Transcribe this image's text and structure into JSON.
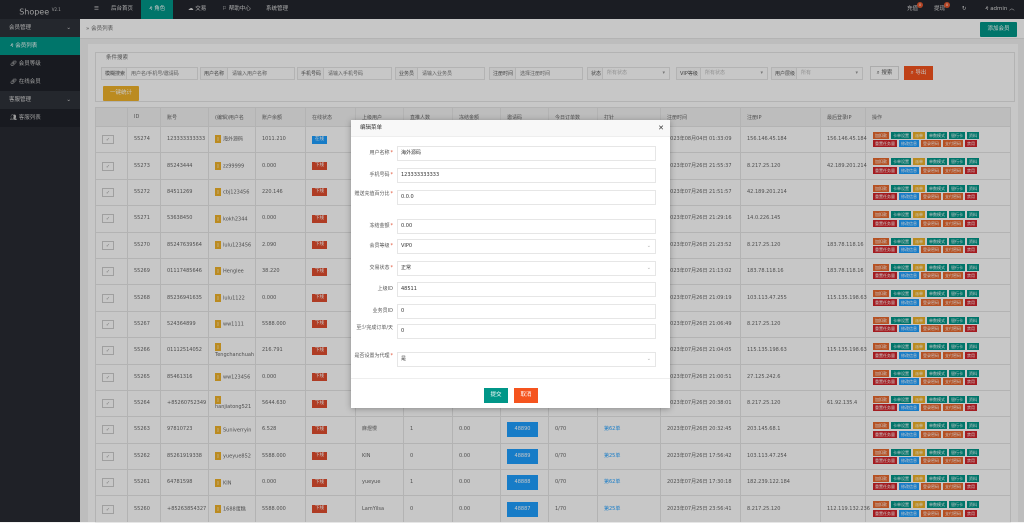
{
  "app": {
    "title": "Shopee",
    "version": "V2.1"
  },
  "topnav": {
    "items": [
      {
        "label": "后台首页"
      },
      {
        "label": "角色"
      },
      {
        "label": "交易"
      },
      {
        "label": "帮助中心"
      },
      {
        "label": "系统管理"
      }
    ],
    "recharge": "充值",
    "recharge_count": "0",
    "withdraw": "提现",
    "withdraw_count": "0",
    "user": "admin"
  },
  "sidebar": {
    "groups": [
      {
        "label": "会员管理",
        "items": [
          {
            "label": "会员列表"
          },
          {
            "label": "会员等级"
          },
          {
            "label": "在线会员"
          }
        ]
      },
      {
        "label": "客服管理",
        "items": [
          {
            "label": "客服列表"
          }
        ]
      }
    ]
  },
  "breadcrumb": "会员列表",
  "add_member": "添加会员",
  "filters": {
    "title": "条件搜索",
    "fuzzy_label": "模糊搜索",
    "fuzzy_placeholder": "用户名/手机号/邀请码",
    "name_label": "用户名称",
    "name_placeholder": "请输入用户名称",
    "phone_label": "手机号码",
    "phone_placeholder": "请输入手机号码",
    "agent_label": "业务员",
    "agent_placeholder": "请输入业务员",
    "regtime_label": "注册时间",
    "regtime_placeholder": "选择注册时间",
    "status_label": "状态",
    "status_value": "所有状态",
    "vip_label": "VIP等级",
    "vip_value": "所有状态",
    "level_label": "用户层级",
    "level_value": "所有",
    "search": "搜索",
    "export": "导出",
    "stats": "一键统计"
  },
  "table": {
    "headers": [
      "",
      "ID",
      "账号",
      "(编辑)用户名",
      "账户余额",
      "在线状态",
      "上级用户",
      "直推人数",
      "冻结金额",
      "邀请码",
      "今日订单数",
      "打针",
      "注册时间",
      "注册IP",
      "最后登录IP",
      "操作"
    ],
    "actions_row1": [
      {
        "label": "加扣款",
        "color": "#e8682e"
      },
      {
        "label": "卡单设置",
        "color": "#009688"
      },
      {
        "label": "派单",
        "color": "#f0b22a"
      },
      {
        "label": "单数模式",
        "color": "#009688"
      },
      {
        "label": "银行卡",
        "color": "#009688"
      },
      {
        "label": "资料",
        "color": "#009688"
      }
    ],
    "actions_row2": [
      {
        "label": "重置任务量",
        "color": "#d2232a"
      },
      {
        "label": "修改信息",
        "color": "#1e9fff"
      },
      {
        "label": "登录密码",
        "color": "#e8682e"
      },
      {
        "label": "支付密码",
        "color": "#e8682e"
      },
      {
        "label": "禁用",
        "color": "#d2232a"
      }
    ],
    "rows": [
      {
        "id": "55274",
        "account": "123333333333",
        "username": "海外源码",
        "balance": "1011.210",
        "online": "在线",
        "is_online": true,
        "parent": "",
        "direct": "",
        "frozen": "",
        "code": "",
        "today": "",
        "needle": "",
        "regtime": "2023年08月04日 01:33:09",
        "regip": "156.146.45.184",
        "lastip": "156.146.45.184"
      },
      {
        "id": "55273",
        "account": "85243444",
        "username": "zz99999",
        "balance": "0.000",
        "online": "下线",
        "is_online": false,
        "parent": "",
        "direct": "",
        "frozen": "",
        "code": "",
        "today": "",
        "needle": "",
        "regtime": "2023年07月26日 21:55:37",
        "regip": "8.217.25.120",
        "lastip": "42.189.201.214"
      },
      {
        "id": "55272",
        "account": "84511269",
        "username": "cbj123456",
        "balance": "220.146",
        "online": "下线",
        "is_online": false,
        "parent": "",
        "direct": "",
        "frozen": "",
        "code": "",
        "today": "",
        "needle": "",
        "regtime": "2023年07月26日 21:51:57",
        "regip": "42.189.201.214",
        "lastip": ""
      },
      {
        "id": "55271",
        "account": "53638450",
        "username": "kokh2344",
        "balance": "0.000",
        "online": "下线",
        "is_online": false,
        "parent": "",
        "direct": "",
        "frozen": "",
        "code": "",
        "today": "",
        "needle": "",
        "regtime": "2023年07月26日 21:29:16",
        "regip": "14.0.226.145",
        "lastip": ""
      },
      {
        "id": "55270",
        "account": "85247639564",
        "username": "lulu123456",
        "balance": "2.090",
        "online": "下线",
        "is_online": false,
        "parent": "",
        "direct": "",
        "frozen": "",
        "code": "",
        "today": "",
        "needle": "",
        "regtime": "2023年07月26日 21:23:52",
        "regip": "8.217.25.120",
        "lastip": "183.78.118.16"
      },
      {
        "id": "55269",
        "account": "01117485646",
        "username": "Henglee",
        "balance": "38.220",
        "online": "下线",
        "is_online": false,
        "parent": "",
        "direct": "",
        "frozen": "",
        "code": "",
        "today": "",
        "needle": "",
        "regtime": "2023年07月26日 21:13:02",
        "regip": "183.78.118.16",
        "lastip": "183.78.118.16"
      },
      {
        "id": "55268",
        "account": "85236941635",
        "username": "lulu1122",
        "balance": "0.000",
        "online": "下线",
        "is_online": false,
        "parent": "",
        "direct": "",
        "frozen": "",
        "code": "",
        "today": "",
        "needle": "",
        "regtime": "2023年07月26日 21:09:19",
        "regip": "103.113.47.255",
        "lastip": "115.135.198.63"
      },
      {
        "id": "55267",
        "account": "524364899",
        "username": "ww1111",
        "balance": "5588.000",
        "online": "下线",
        "is_online": false,
        "parent": "",
        "direct": "",
        "frozen": "",
        "code": "",
        "today": "",
        "needle": "",
        "regtime": "2023年07月26日 21:06:49",
        "regip": "8.217.25.120",
        "lastip": ""
      },
      {
        "id": "55266",
        "account": "01112514052",
        "username": "Tengchanchuah",
        "balance": "216.791",
        "online": "下线",
        "is_online": false,
        "parent": "",
        "direct": "",
        "frozen": "",
        "code": "",
        "today": "",
        "needle": "",
        "regtime": "2023年07月26日 21:04:05",
        "regip": "115.135.198.63",
        "lastip": "115.135.198.63"
      },
      {
        "id": "55265",
        "account": "85461316",
        "username": "ww123456",
        "balance": "0.000",
        "online": "下线",
        "is_online": false,
        "parent": "",
        "direct": "",
        "frozen": "",
        "code": "",
        "today": "",
        "needle": "",
        "regtime": "2023年07月26日 21:00:51",
        "regip": "27.125.242.6",
        "lastip": ""
      },
      {
        "id": "55264",
        "account": "+85260752349",
        "username": "hanjiatong521",
        "balance": "5644.630",
        "online": "下线",
        "is_online": false,
        "parent": "",
        "direct": "",
        "frozen": "",
        "code": "",
        "today": "",
        "needle": "",
        "regtime": "2023年07月26日 20:38:01",
        "regip": "8.217.25.120",
        "lastip": "61.92.135.4"
      },
      {
        "id": "55263",
        "account": "97810723",
        "username": "Suniverryin",
        "balance": "6.528",
        "online": "下线",
        "is_online": false,
        "parent": "麻煜慢",
        "direct": "1",
        "frozen": "0.00",
        "code": "48890",
        "today": "0/70",
        "needle": "第62单",
        "regtime": "2023年07月26日 20:32:45",
        "regip": "203.145.68.1",
        "lastip": ""
      },
      {
        "id": "55262",
        "account": "85261919338",
        "username": "yueyue852",
        "balance": "5588.000",
        "online": "下线",
        "is_online": false,
        "parent": "KIN",
        "direct": "0",
        "frozen": "0.00",
        "code": "48889",
        "today": "0/70",
        "needle": "第25单",
        "regtime": "2023年07月26日 17:56:42",
        "regip": "103.113.47.254",
        "lastip": ""
      },
      {
        "id": "55261",
        "account": "64781598",
        "username": "KIN",
        "balance": "0.000",
        "online": "下线",
        "is_online": false,
        "parent": "yueyue",
        "direct": "1",
        "frozen": "0.00",
        "code": "48888",
        "today": "0/70",
        "needle": "第62单",
        "regtime": "2023年07月26日 17:30:18",
        "regip": "182.239.122.184",
        "lastip": ""
      },
      {
        "id": "55260",
        "account": "+85263854327",
        "username": "1688蛋糕",
        "balance": "5588.000",
        "online": "下线",
        "is_online": false,
        "parent": "LamYilsa",
        "direct": "0",
        "frozen": "0.00",
        "code": "48887",
        "today": "1/70",
        "needle": "第25单",
        "regtime": "2023年07月25日 23:56:41",
        "regip": "8.217.25.120",
        "lastip": "112.119.132.236"
      }
    ]
  },
  "modal": {
    "title": "编辑菜单",
    "fields": [
      {
        "label": "用户名称",
        "required": true,
        "value": "海外源码",
        "type": "text"
      },
      {
        "label": "手机号码",
        "required": true,
        "value": "123333333333",
        "type": "text"
      },
      {
        "label": "赠送充值百分比",
        "required": true,
        "value": "0.0.0",
        "type": "text"
      },
      {
        "label": "冻结金额",
        "required": true,
        "value": "0.00",
        "type": "text"
      },
      {
        "label": "会员等级",
        "required": true,
        "value": "VIP0",
        "type": "select"
      },
      {
        "label": "交易状态",
        "required": true,
        "value": "正常",
        "type": "select"
      },
      {
        "label": "上级ID",
        "required": false,
        "value": "48511",
        "type": "text"
      },
      {
        "label": "业务员ID",
        "required": false,
        "value": "0",
        "type": "text"
      },
      {
        "label": "至少完成订单/天",
        "required": false,
        "value": "0",
        "type": "text"
      },
      {
        "label": "是否设置为代理",
        "required": true,
        "value": "是",
        "type": "select"
      }
    ],
    "submit": "提交",
    "cancel": "取消"
  },
  "colors": {
    "primary": "#009688",
    "danger": "#f5541e",
    "info": "#1e9fff",
    "warn": "#f0b22a",
    "topbar": "#23262e"
  }
}
